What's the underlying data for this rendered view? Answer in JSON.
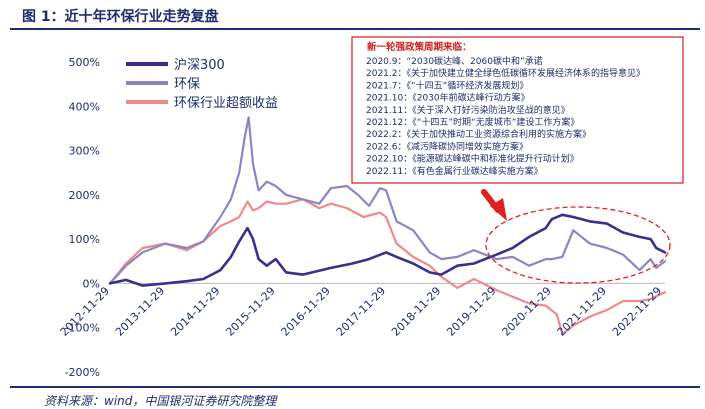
{
  "header": {
    "title": "图 1：近十年环保行业走势复盘"
  },
  "footer": {
    "source": "资料来源：wind，中国银河证券研究院整理"
  },
  "chart_data": {
    "type": "line",
    "ylim": [
      -200,
      500
    ],
    "yticks": [
      "500%",
      "400%",
      "300%",
      "200%",
      "100%",
      "0%",
      "-100%",
      "-200%"
    ],
    "ytick_values": [
      500,
      400,
      300,
      200,
      100,
      0,
      -100,
      -200
    ],
    "x_tick_labels": [
      "2012-11-29",
      "2013-11-29",
      "2014-11-29",
      "2015-11-29",
      "2016-11-29",
      "2017-11-29",
      "2018-11-29",
      "2019-11-29",
      "2020-11-29",
      "2021-11-29",
      "2022-11-29"
    ],
    "x_tick_values": [
      2012.91,
      2013.91,
      2014.91,
      2015.91,
      2016.91,
      2017.91,
      2018.91,
      2019.91,
      2020.91,
      2021.91,
      2022.91
    ],
    "xlim": [
      2012.91,
      2022.96
    ],
    "series": [
      {
        "name": "沪深300",
        "color": "#3b2e8f",
        "width": 2.6,
        "x": [
          2012.91,
          2013.2,
          2013.5,
          2013.91,
          2014.3,
          2014.6,
          2014.91,
          2015.1,
          2015.25,
          2015.4,
          2015.5,
          2015.6,
          2015.75,
          2015.91,
          2016.1,
          2016.4,
          2016.91,
          2017.3,
          2017.6,
          2017.91,
          2018.1,
          2018.4,
          2018.7,
          2018.91,
          2019.2,
          2019.5,
          2019.91,
          2020.2,
          2020.5,
          2020.8,
          2020.91,
          2021.1,
          2021.3,
          2021.6,
          2021.91,
          2022.2,
          2022.5,
          2022.7,
          2022.8,
          2022.96
        ],
        "y": [
          0,
          8,
          -5,
          0,
          5,
          10,
          30,
          60,
          95,
          125,
          100,
          55,
          40,
          55,
          25,
          20,
          35,
          45,
          55,
          70,
          60,
          45,
          25,
          20,
          40,
          45,
          65,
          80,
          105,
          125,
          145,
          155,
          150,
          140,
          135,
          115,
          105,
          100,
          80,
          70
        ]
      },
      {
        "name": "环保",
        "color": "#8c84c4",
        "width": 2.2,
        "x": [
          2012.91,
          2013.2,
          2013.5,
          2013.91,
          2014.3,
          2014.6,
          2014.91,
          2015.1,
          2015.25,
          2015.35,
          2015.42,
          2015.5,
          2015.6,
          2015.75,
          2015.91,
          2016.1,
          2016.4,
          2016.7,
          2016.91,
          2017.2,
          2017.4,
          2017.6,
          2017.8,
          2017.91,
          2018.1,
          2018.4,
          2018.7,
          2018.91,
          2019.2,
          2019.5,
          2019.91,
          2020.2,
          2020.5,
          2020.8,
          2020.91,
          2021.1,
          2021.3,
          2021.6,
          2021.91,
          2022.2,
          2022.5,
          2022.7,
          2022.8,
          2022.96
        ],
        "y": [
          0,
          40,
          70,
          90,
          80,
          95,
          150,
          190,
          250,
          330,
          375,
          270,
          210,
          230,
          220,
          200,
          190,
          180,
          215,
          220,
          200,
          175,
          215,
          210,
          140,
          120,
          70,
          55,
          60,
          75,
          55,
          60,
          40,
          55,
          55,
          60,
          120,
          90,
          80,
          65,
          30,
          55,
          35,
          50
        ]
      },
      {
        "name": "环保行业超额收益",
        "color": "#f08a8a",
        "width": 2.2,
        "x": [
          2012.91,
          2013.2,
          2013.5,
          2013.91,
          2014.3,
          2014.6,
          2014.91,
          2015.1,
          2015.25,
          2015.4,
          2015.5,
          2015.6,
          2015.75,
          2015.91,
          2016.1,
          2016.4,
          2016.7,
          2016.91,
          2017.2,
          2017.5,
          2017.8,
          2017.91,
          2018.1,
          2018.4,
          2018.7,
          2018.91,
          2019.2,
          2019.5,
          2019.91,
          2020.2,
          2020.5,
          2020.8,
          2021.0,
          2021.1,
          2021.3,
          2021.6,
          2021.91,
          2022.2,
          2022.5,
          2022.7,
          2022.96
        ],
        "y": [
          0,
          45,
          80,
          90,
          75,
          95,
          130,
          140,
          150,
          185,
          165,
          170,
          185,
          180,
          180,
          190,
          170,
          180,
          170,
          150,
          160,
          150,
          90,
          60,
          40,
          15,
          -10,
          10,
          -15,
          -30,
          -45,
          -50,
          -70,
          -115,
          -95,
          -75,
          -60,
          -40,
          -40,
          -35,
          -20
        ]
      }
    ],
    "legend": {
      "position": "top-left"
    },
    "annotation_box": {
      "title": "新一轮强政策周期来临：",
      "items": [
        "2020.9：“2030碳达峰、2060碳中和”承诺",
        "2021.2：《关于加快建立健全绿色低碳循环发展经济体系的指导意见》",
        "2021.7：《“十四五”循环经济发展规划》",
        "2021.10：《2030年前碳达峰行动方案》",
        "2021.11：《关于深入打好污染防治攻坚战的意见》",
        "2021.12：《“十四五”时期“无废城市”建设工作方案》",
        "2022.2：《关于加快推动工业资源综合利用的实施方案》",
        "2022.6：《减污降碳协同增效实施方案》",
        "2022.10：《能源碳达峰碳中和标准化提升行动计划》",
        "2022.11：《有色金属行业碳达峰实施方案》"
      ]
    },
    "colors": {
      "accent": "#1e2d6b",
      "box_border": "#d21e1e",
      "arrow": "#e02020"
    }
  }
}
